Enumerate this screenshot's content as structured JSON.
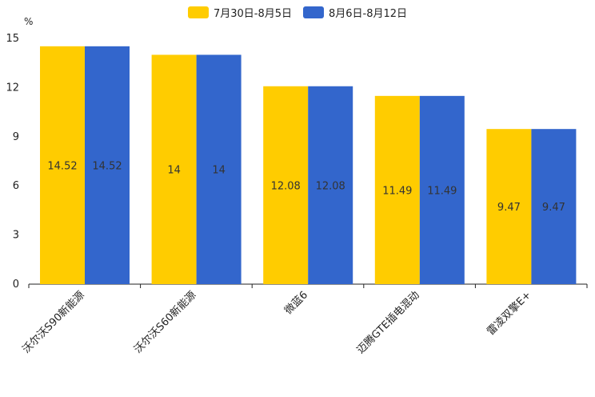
{
  "chart_data": {
    "type": "bar",
    "unit": "%",
    "categories": [
      "沃尔沃S90新能源",
      "沃尔沃S60新能源",
      "微蓝6",
      "迈腾GTE插电混动",
      "雷凌双擎E+"
    ],
    "series": [
      {
        "name": "7月30日-8月5日",
        "color": "#ffcc00",
        "values": [
          14.52,
          14,
          12.08,
          11.49,
          9.47
        ],
        "labels": [
          "14.52",
          "14",
          "12.08",
          "11.49",
          "9.47"
        ]
      },
      {
        "name": "8月6日-8月12日",
        "color": "#3366cc",
        "values": [
          14.52,
          14,
          12.08,
          11.49,
          9.47
        ],
        "labels": [
          "14.52",
          "14",
          "12.08",
          "11.49",
          "9.47"
        ]
      }
    ],
    "ylim": [
      0,
      15
    ],
    "yticks": [
      0,
      3,
      6,
      9,
      12,
      15
    ],
    "legend_position": "top-center",
    "grid": false
  }
}
